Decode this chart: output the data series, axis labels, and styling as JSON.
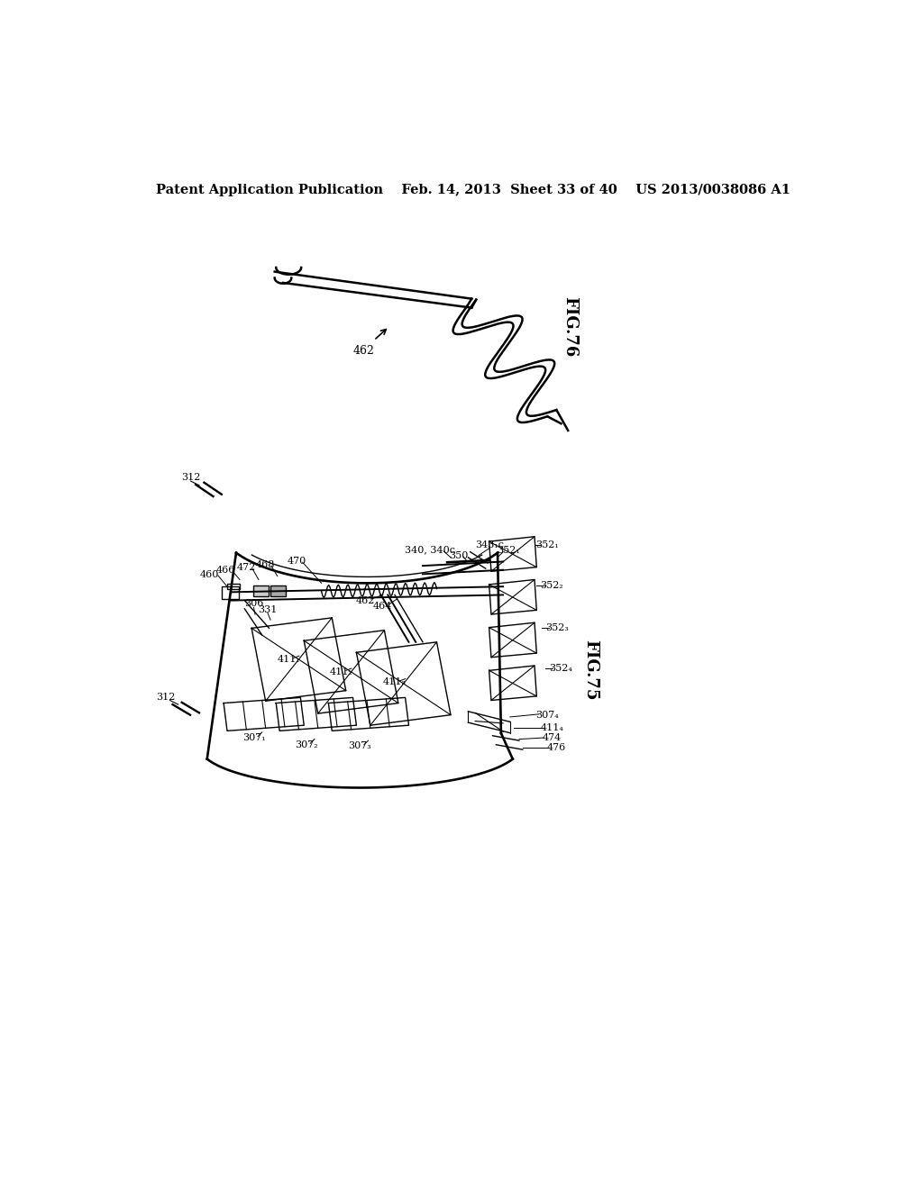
{
  "background_color": "#ffffff",
  "header_text": "Patent Application Publication    Feb. 14, 2013  Sheet 33 of 40    US 2013/0038086 A1",
  "fig76_label": "FIG.76",
  "fig75_label": "FIG.75",
  "header_fontsize": 10.5,
  "label_fontsize": 13
}
